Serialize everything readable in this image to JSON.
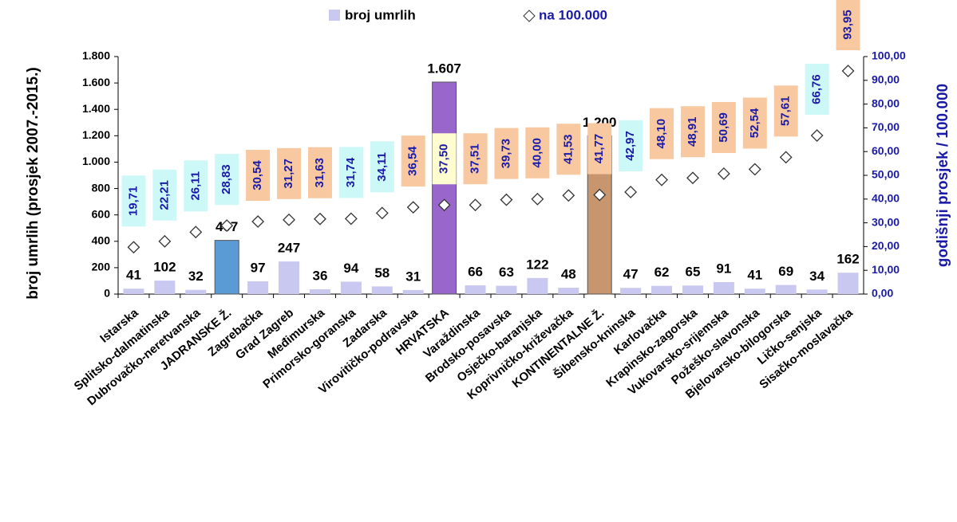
{
  "chart_data": {
    "type": "bar_scatter",
    "categories": [
      "Istarska",
      "Splitsko-dalmatinska",
      "Dubrovačko-neretvanska",
      "JADRANSKE Ž.",
      "Zagrebačka",
      "Grad Zagreb",
      "Međimurska",
      "Primorsko-goranska",
      "Zadarska",
      "Virovitičko-podravska",
      "HRVATSKA",
      "Varaždinska",
      "Brodsko-posavska",
      "Osječko-baranjska",
      "Koprivničko-križevačka",
      "KONTINENTALNE Ž.",
      "Šibensko-kninska",
      "Karlovačka",
      "Krapinsko-zagorska",
      "Vukovarsko-srijemska",
      "Požeško-slavonska",
      "Bjelovarsko-bilogorska",
      "Ličko-senjska",
      "Sisačko-moslavačka"
    ],
    "series": [
      {
        "name": "broj umrlih",
        "color": "#c8c8f0",
        "colors": [
          "#c8c8f0",
          "#c8c8f0",
          "#c8c8f0",
          "#5b9bd5",
          "#c8c8f0",
          "#c8c8f0",
          "#c8c8f0",
          "#c8c8f0",
          "#c8c8f0",
          "#c8c8f0",
          "#9966cc",
          "#c8c8f0",
          "#c8c8f0",
          "#c8c8f0",
          "#c8c8f0",
          "#c8966e",
          "#c8c8f0",
          "#c8c8f0",
          "#c8c8f0",
          "#c8c8f0",
          "#c8c8f0",
          "#c8c8f0",
          "#c8c8f0",
          "#c8c8f0"
        ],
        "values": [
          41,
          102,
          32,
          407,
          97,
          247,
          36,
          94,
          58,
          31,
          1607,
          66,
          63,
          122,
          48,
          1200,
          47,
          62,
          65,
          91,
          41,
          69,
          34,
          162
        ],
        "value_labels": [
          "41",
          "102",
          "32",
          "407",
          "97",
          "247",
          "36",
          "94",
          "58",
          "31",
          "1.607",
          "66",
          "63",
          "122",
          "48",
          "1.200",
          "47",
          "62",
          "65",
          "91",
          "41",
          "69",
          "34",
          "162"
        ]
      },
      {
        "name": "na 100.000",
        "color": "#1a1aa8",
        "axis": "y2",
        "label_colors": [
          "#ccf8f8",
          "#ccf8f8",
          "#ccf8f8",
          "#ccf8f8",
          "#f8c8a0",
          "#f8c8a0",
          "#f8c8a0",
          "#ccf8f8",
          "#ccf8f8",
          "#f8c8a0",
          "#fffcd0",
          "#f8c8a0",
          "#f8c8a0",
          "#f8c8a0",
          "#f8c8a0",
          "#f8c8a0",
          "#ccf8f8",
          "#f8c8a0",
          "#f8c8a0",
          "#f8c8a0",
          "#f8c8a0",
          "#f8c8a0",
          "#ccf8f8",
          "#f8c8a0"
        ],
        "values": [
          19.71,
          22.21,
          26.11,
          28.83,
          30.54,
          31.27,
          31.63,
          31.74,
          34.11,
          36.54,
          37.5,
          37.51,
          39.73,
          40.0,
          41.53,
          41.77,
          42.97,
          48.1,
          48.91,
          50.69,
          52.54,
          57.61,
          66.76,
          93.95
        ],
        "value_labels": [
          "19,71",
          "22,21",
          "26,11",
          "28,83",
          "30,54",
          "31,27",
          "31,63",
          "31,74",
          "34,11",
          "36,54",
          "37,50",
          "37,51",
          "39,73",
          "40,00",
          "41,53",
          "41,77",
          "42,97",
          "48,10",
          "48,91",
          "50,69",
          "52,54",
          "57,61",
          "66,76",
          "93,95"
        ]
      }
    ],
    "ylabel": "broj umrlih (prosjek 2007.-2015.)",
    "y2label": "godišnji prosjek / 100.000",
    "ylim": [
      0,
      1800
    ],
    "yticks": [
      0,
      200,
      400,
      600,
      800,
      {
        "value": 1000,
        "label": "1.000"
      },
      {
        "value": 1200,
        "label": "1.200"
      },
      {
        "value": 1400,
        "label": "1.400"
      },
      {
        "value": 1600,
        "label": "1.600"
      },
      {
        "value": 1800,
        "label": "1.800"
      }
    ],
    "y2lim": [
      0,
      100
    ],
    "y2ticks": [
      {
        "value": 0,
        "label": "0,00"
      },
      {
        "value": 10,
        "label": "10,00"
      },
      {
        "value": 20,
        "label": "20,00"
      },
      {
        "value": 30,
        "label": "30,00"
      },
      {
        "value": 40,
        "label": "40,00"
      },
      {
        "value": 50,
        "label": "50,00"
      },
      {
        "value": 60,
        "label": "60,00"
      },
      {
        "value": 70,
        "label": "70,00"
      },
      {
        "value": 80,
        "label": "80,00"
      },
      {
        "value": 90,
        "label": "90,00"
      },
      {
        "value": 100,
        "label": "100,00"
      }
    ],
    "legend": "top"
  }
}
